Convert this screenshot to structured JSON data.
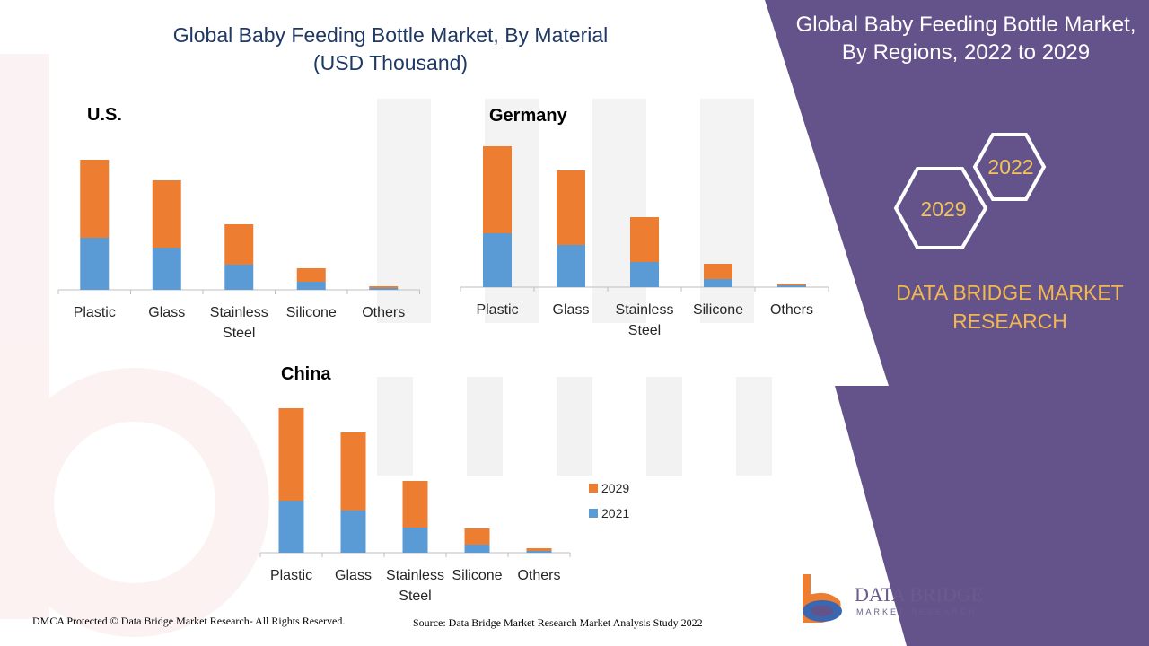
{
  "title_line1": "Global Baby Feeding Bottle Market, By Material",
  "title_line2": "(USD Thousand)",
  "right_panel": {
    "title_line1": "Global Baby Feeding Bottle Market,",
    "title_line2": "By Regions, 2022 to 2029",
    "hex_2022": "2022",
    "hex_2029": "2029",
    "brand_line1": "DATA BRIDGE MARKET",
    "brand_line2": "RESEARCH",
    "panel_color": "#64528a",
    "accent_color": "#f2b84f"
  },
  "footer": {
    "dmca": "DMCA Protected © Data Bridge Market Research- All Rights Reserved.",
    "source": "Source: Data Bridge Market Research Market Analysis Study 2022"
  },
  "logo": {
    "name": "DATA BRIDGE",
    "sub": "MARKET RESEARCH"
  },
  "legend": [
    {
      "label": "2029",
      "color": "#ed7d31"
    },
    {
      "label": "2021",
      "color": "#5b9bd5"
    }
  ],
  "chart_data": [
    {
      "type": "bar",
      "stacked": true,
      "title": "U.S.",
      "categories": [
        "Plastic",
        "Glass",
        "Stainless Steel",
        "Silicone",
        "Others"
      ],
      "category_lines": [
        [
          "Plastic"
        ],
        [
          "Glass"
        ],
        [
          "Stainless",
          "Steel"
        ],
        [
          "Silicone"
        ],
        [
          "Others"
        ]
      ],
      "series": [
        {
          "name": "2021",
          "color": "#5b9bd5",
          "values": [
            58,
            47,
            28,
            9,
            2
          ]
        },
        {
          "name": "2029",
          "color": "#ed7d31",
          "values": [
            87,
            75,
            45,
            15,
            2
          ]
        }
      ],
      "ylim": [
        0,
        160
      ]
    },
    {
      "type": "bar",
      "stacked": true,
      "title": "Germany",
      "categories": [
        "Plastic",
        "Glass",
        "Stainless Steel",
        "Silicone",
        "Others"
      ],
      "category_lines": [
        [
          "Plastic"
        ],
        [
          "Glass"
        ],
        [
          "Stainless",
          "Steel"
        ],
        [
          "Silicone"
        ],
        [
          "Others"
        ]
      ],
      "series": [
        {
          "name": "2021",
          "color": "#5b9bd5",
          "values": [
            60,
            47,
            28,
            9,
            2
          ]
        },
        {
          "name": "2029",
          "color": "#ed7d31",
          "values": [
            97,
            83,
            50,
            17,
            2
          ]
        }
      ],
      "ylim": [
        0,
        160
      ]
    },
    {
      "type": "bar",
      "stacked": true,
      "title": "China",
      "categories": [
        "Plastic",
        "Glass",
        "Stainless Steel",
        "Silicone",
        "Others"
      ],
      "category_lines": [
        [
          "Plastic"
        ],
        [
          "Glass"
        ],
        [
          "Stainless",
          "Steel"
        ],
        [
          "Silicone"
        ],
        [
          "Others"
        ]
      ],
      "series": [
        {
          "name": "2021",
          "color": "#5b9bd5",
          "values": [
            58,
            47,
            28,
            9,
            2
          ]
        },
        {
          "name": "2029",
          "color": "#ed7d31",
          "values": [
            103,
            87,
            52,
            18,
            3
          ]
        }
      ],
      "ylim": [
        0,
        165
      ]
    }
  ]
}
